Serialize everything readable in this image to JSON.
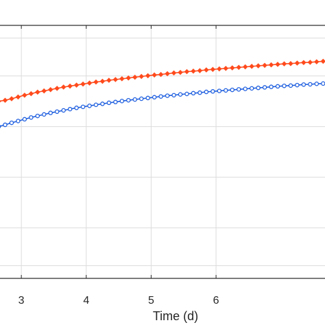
{
  "chart_data": {
    "type": "line",
    "title": "",
    "xlabel": "Time (d)",
    "ylabel": "",
    "xlim": [
      2.65,
      7.7
    ],
    "ylim": [
      0,
      1
    ],
    "x_ticks": [
      3,
      4,
      5,
      6
    ],
    "x_tick_labels": [
      "3",
      "4",
      "5",
      "6"
    ],
    "y_gridlines": [
      0.95,
      0.8,
      0.6,
      0.4,
      0.2,
      0.05
    ],
    "grid": true,
    "legend": "none",
    "series": [
      {
        "color": "#ff4a1c",
        "marker": "diamond",
        "x": [
          2.65,
          2.75,
          2.85,
          2.95,
          3.05,
          3.15,
          3.25,
          3.35,
          3.45,
          3.55,
          3.65,
          3.75,
          3.85,
          3.95,
          4.05,
          4.15,
          4.25,
          4.35,
          4.45,
          4.55,
          4.65,
          4.75,
          4.85,
          4.95,
          5.05,
          5.15,
          5.25,
          5.35,
          5.45,
          5.55,
          5.65,
          5.75,
          5.85,
          5.95,
          6.05,
          6.15,
          6.25,
          6.35,
          6.45,
          6.55,
          6.65,
          6.75,
          6.85,
          6.95,
          7.05,
          7.15,
          7.25,
          7.35,
          7.45,
          7.55,
          7.65
        ],
        "y": [
          0.7,
          0.704,
          0.71,
          0.717,
          0.724,
          0.73,
          0.736,
          0.741,
          0.746,
          0.751,
          0.756,
          0.76,
          0.764,
          0.768,
          0.772,
          0.776,
          0.779,
          0.783,
          0.786,
          0.789,
          0.792,
          0.795,
          0.798,
          0.801,
          0.804,
          0.806,
          0.809,
          0.812,
          0.814,
          0.817,
          0.819,
          0.821,
          0.824,
          0.826,
          0.828,
          0.83,
          0.832,
          0.834,
          0.836,
          0.838,
          0.84,
          0.842,
          0.844,
          0.846,
          0.848,
          0.849,
          0.851,
          0.853,
          0.854,
          0.856,
          0.858
        ]
      },
      {
        "color": "#1f5fdf",
        "marker": "circle",
        "x": [
          2.65,
          2.75,
          2.85,
          2.95,
          3.05,
          3.15,
          3.25,
          3.35,
          3.45,
          3.55,
          3.65,
          3.75,
          3.85,
          3.95,
          4.05,
          4.15,
          4.25,
          4.35,
          4.45,
          4.55,
          4.65,
          4.75,
          4.85,
          4.95,
          5.05,
          5.15,
          5.25,
          5.35,
          5.45,
          5.55,
          5.65,
          5.75,
          5.85,
          5.95,
          6.05,
          6.15,
          6.25,
          6.35,
          6.45,
          6.55,
          6.65,
          6.75,
          6.85,
          6.95,
          7.05,
          7.15,
          7.25,
          7.35,
          7.45,
          7.55,
          7.65
        ],
        "y": [
          0.6,
          0.607,
          0.615,
          0.622,
          0.629,
          0.636,
          0.642,
          0.648,
          0.654,
          0.659,
          0.664,
          0.669,
          0.674,
          0.678,
          0.682,
          0.686,
          0.69,
          0.694,
          0.697,
          0.701,
          0.704,
          0.707,
          0.71,
          0.713,
          0.716,
          0.719,
          0.722,
          0.724,
          0.727,
          0.729,
          0.732,
          0.734,
          0.737,
          0.739,
          0.741,
          0.743,
          0.745,
          0.747,
          0.749,
          0.751,
          0.753,
          0.755,
          0.757,
          0.759,
          0.761,
          0.762,
          0.764,
          0.766,
          0.767,
          0.769,
          0.77
        ]
      }
    ]
  }
}
